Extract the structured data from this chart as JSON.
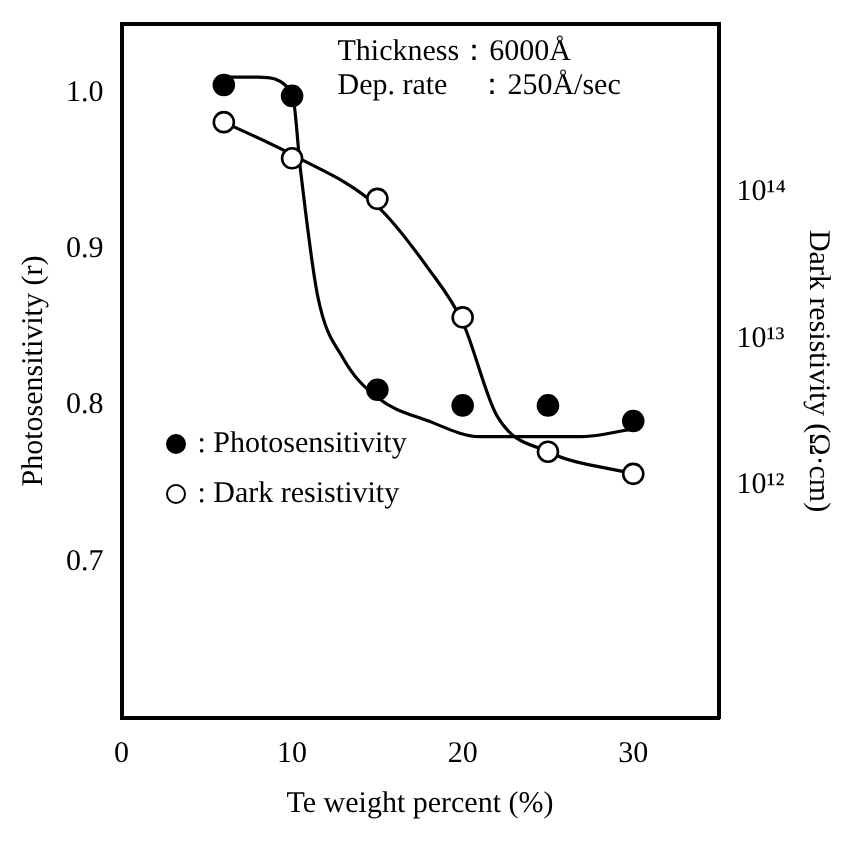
{
  "chart_data": {
    "type": "scatter",
    "xlabel": "Te weight percent (%)",
    "ylabel": "Photosensitivity (r)",
    "y2label": "Dark resistivity (Ω·cm)",
    "annotations": [
      "Thickness：6000Å",
      "Dep. rate　：250Å/sec"
    ],
    "xlim": [
      0,
      35
    ],
    "xticks": [
      0,
      10,
      20,
      30
    ],
    "ylim": [
      0.6,
      1.044
    ],
    "yticks": [
      {
        "value": 0.7,
        "label": "0.7"
      },
      {
        "value": 0.8,
        "label": "0.8"
      },
      {
        "value": 0.9,
        "label": "0.9"
      },
      {
        "value": 1,
        "label": "1.0"
      }
    ],
    "y2lim": [
      26000000000.0,
      1400000000000000.0
    ],
    "y2ticks": [
      {
        "value": 1000000000000.0,
        "label": "10¹²"
      },
      {
        "value": 10000000000000.0,
        "label": "10¹³"
      },
      {
        "value": 100000000000000.0,
        "label": "10¹⁴"
      }
    ],
    "log": "y2",
    "grid": false,
    "legend": "left",
    "marker": "circle",
    "series": [
      {
        "name": ": Photosensitivity",
        "color": "#000000",
        "x": [
          6,
          10,
          15,
          20,
          25,
          30
        ],
        "values": [
          1.005,
          0.998,
          0.81,
          0.8,
          0.8,
          0.79
        ]
      },
      {
        "name": ": Dark resistivity",
        "axis": "y2",
        "color": "#ffffff",
        "x": [
          6,
          10,
          15,
          20,
          25,
          30
        ],
        "values": [
          300000000000000.0,
          170000000000000.0,
          90000000000000.0,
          14000000000000.0,
          1700000000000.0,
          1200000000000.0
        ]
      },
      {
        "type": "line",
        "color": "#000000",
        "marker": "none",
        "x": [
          6,
          8,
          10,
          10.5,
          11.5,
          13,
          15,
          18,
          21,
          24,
          27,
          30
        ],
        "values": [
          1.01,
          1.01,
          1.0,
          0.95,
          0.87,
          0.83,
          0.805,
          0.79,
          0.78,
          0.78,
          0.78,
          0.785
        ]
      },
      {
        "type": "line",
        "axis": "y2",
        "color": "#000000",
        "marker": "none",
        "x": [
          6,
          10,
          15,
          18,
          20,
          22,
          25,
          30
        ],
        "values": [
          300000000000000.0,
          180000000000000.0,
          80000000000000.0,
          30000000000000.0,
          13000000000000.0,
          3000000000000.0,
          1700000000000.0,
          1200000000000.0
        ]
      }
    ]
  }
}
